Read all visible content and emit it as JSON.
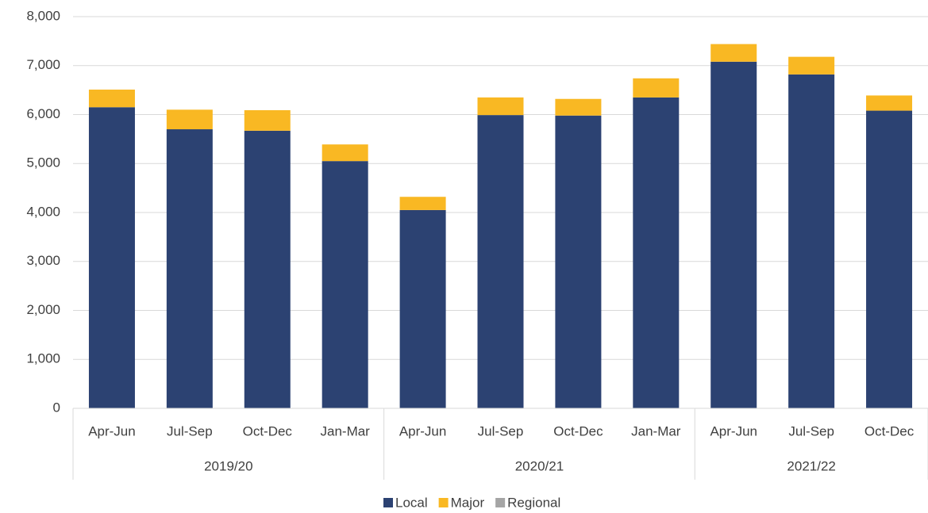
{
  "chart_data": {
    "type": "stacked_bar",
    "groups": [
      {
        "label": "2019/20",
        "categories": [
          "Apr-Jun",
          "Jul-Sep",
          "Oct-Dec",
          "Jan-Mar"
        ]
      },
      {
        "label": "2020/21",
        "categories": [
          "Apr-Jun",
          "Jul-Sep",
          "Oct-Dec",
          "Jan-Mar"
        ]
      },
      {
        "label": "2021/22",
        "categories": [
          "Apr-Jun",
          "Jul-Sep",
          "Oct-Dec"
        ]
      }
    ],
    "series": [
      {
        "name": "Local",
        "color": "#2c4272",
        "values": [
          6150,
          5700,
          5670,
          5050,
          4050,
          5990,
          5980,
          6350,
          7080,
          6820,
          6080
        ]
      },
      {
        "name": "Major",
        "color": "#f9b823",
        "values": [
          360,
          400,
          420,
          340,
          270,
          360,
          340,
          390,
          360,
          360,
          310
        ]
      },
      {
        "name": "Regional",
        "color": "#a5a5a5",
        "values": [
          0,
          0,
          0,
          0,
          0,
          0,
          0,
          0,
          0,
          0,
          0
        ]
      }
    ],
    "ylim": [
      0,
      8000
    ],
    "yticks": [
      0,
      {
        "value": 1000,
        "label": "1,000"
      },
      {
        "value": 2000,
        "label": "2,000"
      },
      {
        "value": 3000,
        "label": "3,000"
      },
      {
        "value": 4000,
        "label": "4,000"
      },
      {
        "value": 5000,
        "label": "5,000"
      },
      {
        "value": 6000,
        "label": "6,000"
      },
      {
        "value": 7000,
        "label": "7,000"
      },
      {
        "value": 8000,
        "label": "8,000"
      }
    ],
    "grid": true,
    "legend": "bottom"
  }
}
